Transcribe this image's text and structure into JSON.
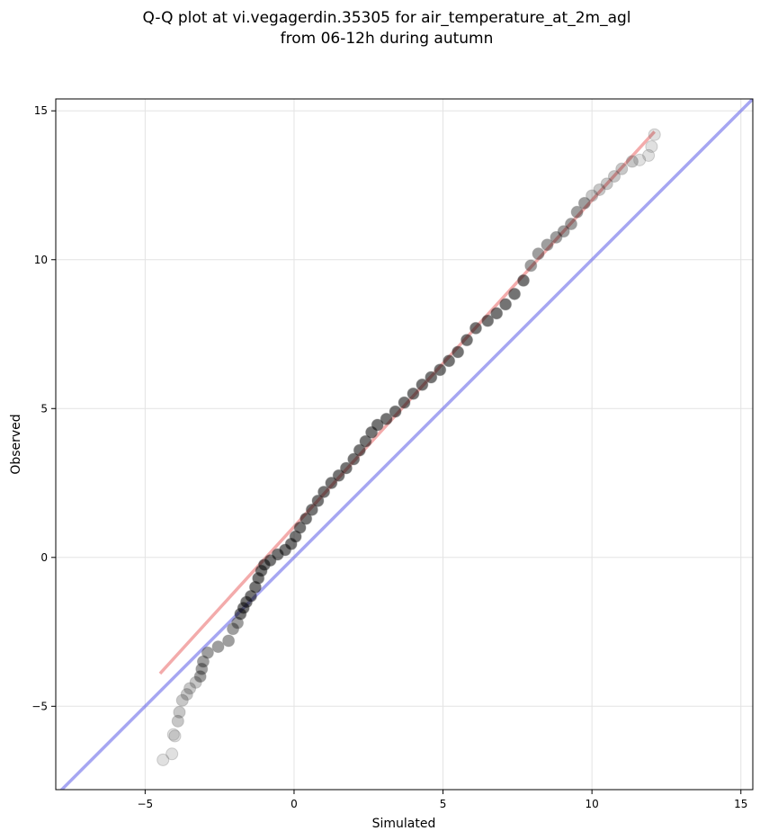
{
  "chart_data": {
    "type": "scatter",
    "title_line1": "Q-Q plot at vi.vegagerdin.35305 for air_temperature_at_2m_agl",
    "title_line2": "from 06-12h during autumn",
    "xlabel": "Simulated",
    "ylabel": "Observed",
    "xlim": [
      -8.0,
      15.4
    ],
    "ylim": [
      -7.8,
      15.4
    ],
    "xticks": [
      -5,
      0,
      5,
      10,
      15
    ],
    "yticks": [
      -5,
      0,
      5,
      10,
      15
    ],
    "xtick_labels": [
      "−5",
      "0",
      "5",
      "10",
      "15"
    ],
    "ytick_labels": [
      "−5",
      "0",
      "5",
      "10",
      "15"
    ],
    "grid": true,
    "reference_line": {
      "x": [
        -8.0,
        15.4
      ],
      "y": [
        -8.0,
        15.4
      ],
      "color": "#6b6bea"
    },
    "fit_line": {
      "x": [
        -4.5,
        12.1
      ],
      "y": [
        -3.9,
        14.3
      ],
      "color": "#ee8888"
    },
    "quantiles": [
      [
        -4.4,
        -6.8
      ],
      [
        -4.1,
        -6.6
      ],
      [
        -4.0,
        -6.0
      ],
      [
        -4.05,
        -5.95
      ],
      [
        -3.9,
        -5.5
      ],
      [
        -3.85,
        -5.2
      ],
      [
        -3.75,
        -4.8
      ],
      [
        -3.6,
        -4.6
      ],
      [
        -3.5,
        -4.4
      ],
      [
        -3.3,
        -4.2
      ],
      [
        -3.15,
        -4.0
      ],
      [
        -3.1,
        -3.75
      ],
      [
        -3.05,
        -3.5
      ],
      [
        -2.9,
        -3.2
      ],
      [
        -2.55,
        -3.0
      ],
      [
        -2.2,
        -2.8
      ],
      [
        -2.05,
        -2.4
      ],
      [
        -1.9,
        -2.2
      ],
      [
        -1.8,
        -1.9
      ],
      [
        -1.7,
        -1.7
      ],
      [
        -1.6,
        -1.5
      ],
      [
        -1.45,
        -1.3
      ],
      [
        -1.3,
        -1.0
      ],
      [
        -1.2,
        -0.7
      ],
      [
        -1.1,
        -0.45
      ],
      [
        -1.0,
        -0.25
      ],
      [
        -0.8,
        -0.1
      ],
      [
        -0.55,
        0.1
      ],
      [
        -0.3,
        0.25
      ],
      [
        -0.1,
        0.45
      ],
      [
        0.05,
        0.7
      ],
      [
        0.2,
        1.0
      ],
      [
        0.4,
        1.3
      ],
      [
        0.6,
        1.6
      ],
      [
        0.8,
        1.9
      ],
      [
        1.0,
        2.2
      ],
      [
        1.25,
        2.5
      ],
      [
        1.5,
        2.75
      ],
      [
        1.75,
        3.0
      ],
      [
        2.0,
        3.3
      ],
      [
        2.2,
        3.6
      ],
      [
        2.4,
        3.9
      ],
      [
        2.6,
        4.2
      ],
      [
        2.8,
        4.45
      ],
      [
        3.1,
        4.65
      ],
      [
        3.4,
        4.9
      ],
      [
        3.7,
        5.2
      ],
      [
        4.0,
        5.5
      ],
      [
        4.3,
        5.8
      ],
      [
        4.6,
        6.05
      ],
      [
        4.9,
        6.3
      ],
      [
        5.2,
        6.6
      ],
      [
        5.5,
        6.9
      ],
      [
        5.8,
        7.3
      ],
      [
        6.1,
        7.7
      ],
      [
        6.5,
        7.95
      ],
      [
        6.8,
        8.2
      ],
      [
        7.1,
        8.5
      ],
      [
        7.4,
        8.85
      ],
      [
        7.7,
        9.3
      ],
      [
        7.95,
        9.8
      ],
      [
        8.2,
        10.2
      ],
      [
        8.5,
        10.5
      ],
      [
        8.8,
        10.75
      ],
      [
        9.05,
        10.95
      ],
      [
        9.3,
        11.2
      ],
      [
        9.5,
        11.6
      ],
      [
        9.75,
        11.9
      ],
      [
        10.0,
        12.15
      ],
      [
        10.25,
        12.35
      ],
      [
        10.5,
        12.55
      ],
      [
        10.75,
        12.8
      ],
      [
        11.0,
        13.05
      ],
      [
        11.35,
        13.3
      ],
      [
        11.6,
        13.35
      ],
      [
        11.9,
        13.5
      ],
      [
        12.0,
        13.8
      ],
      [
        12.1,
        14.2
      ]
    ]
  }
}
